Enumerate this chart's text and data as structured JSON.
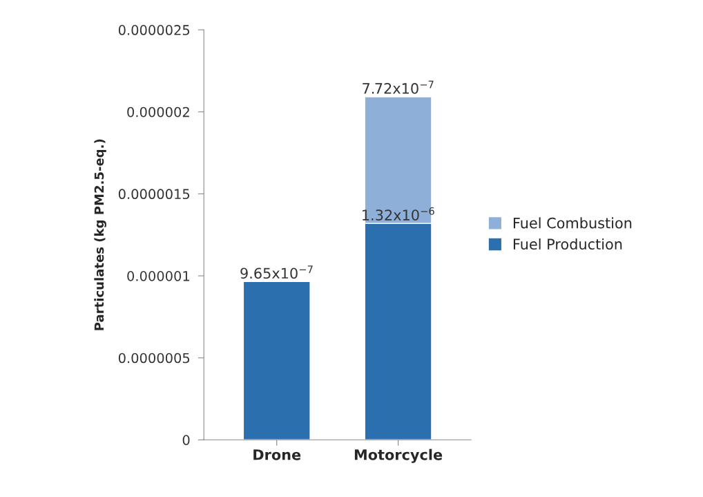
{
  "chart_data": {
    "type": "bar",
    "stacked": true,
    "ylabel": "Particulates (kg PM2.5-eq.)",
    "categories": [
      "Drone",
      "Motorcycle"
    ],
    "series": [
      {
        "name": "Fuel Production",
        "color": "#2b6fae",
        "values": [
          9.65e-07,
          1.32e-06
        ],
        "value_labels": [
          "9.65x10$^{−7}$",
          "1.32x10$^{−6}$"
        ]
      },
      {
        "name": "Fuel Combustion",
        "color": "#8eb0d8",
        "values": [
          null,
          7.72e-07
        ],
        "value_labels": [
          null,
          "7.72x10$^{−7}$"
        ]
      }
    ],
    "ylim": [
      0,
      2.5e-06
    ],
    "yticks": [
      0,
      {
        "value": 5e-07,
        "label": "0.0000005"
      },
      {
        "value": 1e-06,
        "label": "0.000001"
      },
      {
        "value": 1.5e-06,
        "label": "0.0000015"
      },
      {
        "value": 2e-06,
        "label": "0.000002"
      },
      {
        "value": 2.5e-06,
        "label": "0.0000025"
      }
    ],
    "grid": false,
    "legend": "right"
  }
}
